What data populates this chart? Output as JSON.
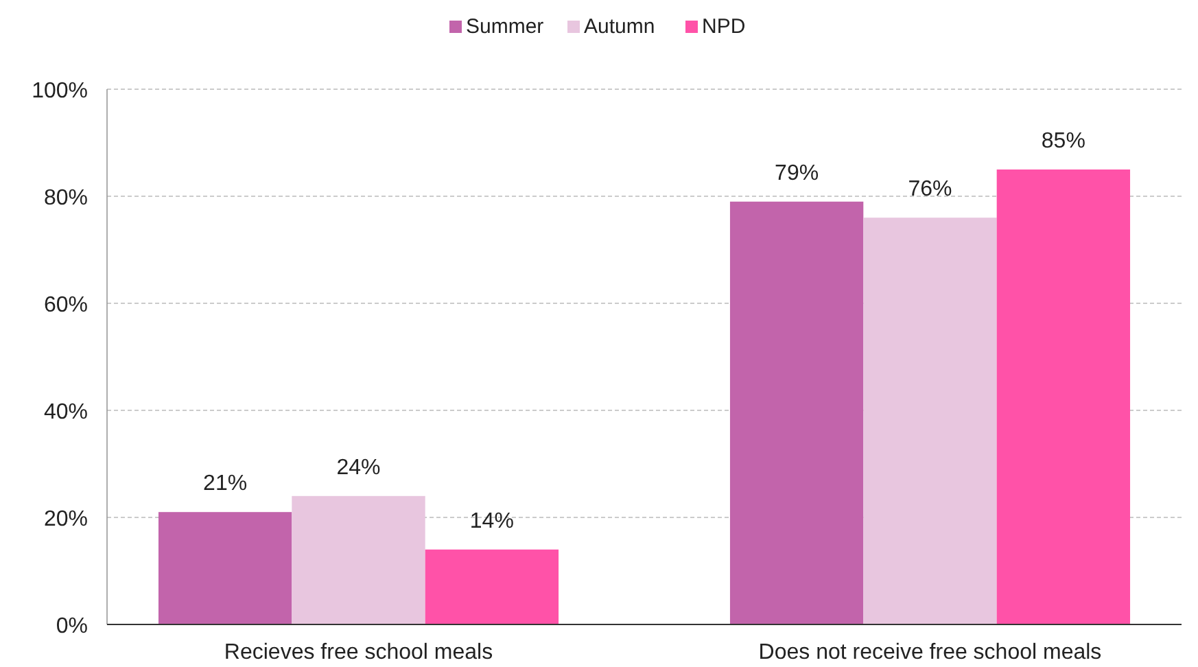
{
  "chart_data": {
    "type": "bar",
    "categories": [
      "Recieves free school meals",
      "Does not receive free school meals"
    ],
    "series": [
      {
        "name": "Summer",
        "color": "#c264ab",
        "values": [
          21,
          79
        ],
        "value_labels": [
          "21%",
          "79%"
        ]
      },
      {
        "name": "Autumn",
        "color": "#e8c6df",
        "values": [
          24,
          76
        ],
        "value_labels": [
          "24%",
          "76%"
        ]
      },
      {
        "name": "NPD",
        "color": "#ff52a8",
        "values": [
          14,
          85
        ],
        "value_labels": [
          "14%",
          "85%"
        ]
      }
    ],
    "ylim": [
      0,
      100
    ],
    "yticks": [
      {
        "value": 0,
        "label": "0%"
      },
      {
        "value": 20,
        "label": "20%"
      },
      {
        "value": 40,
        "label": "40%"
      },
      {
        "value": 60,
        "label": "60%"
      },
      {
        "value": 80,
        "label": "80%"
      },
      {
        "value": 100,
        "label": "100%"
      }
    ],
    "grid": "y",
    "legend": "top"
  }
}
